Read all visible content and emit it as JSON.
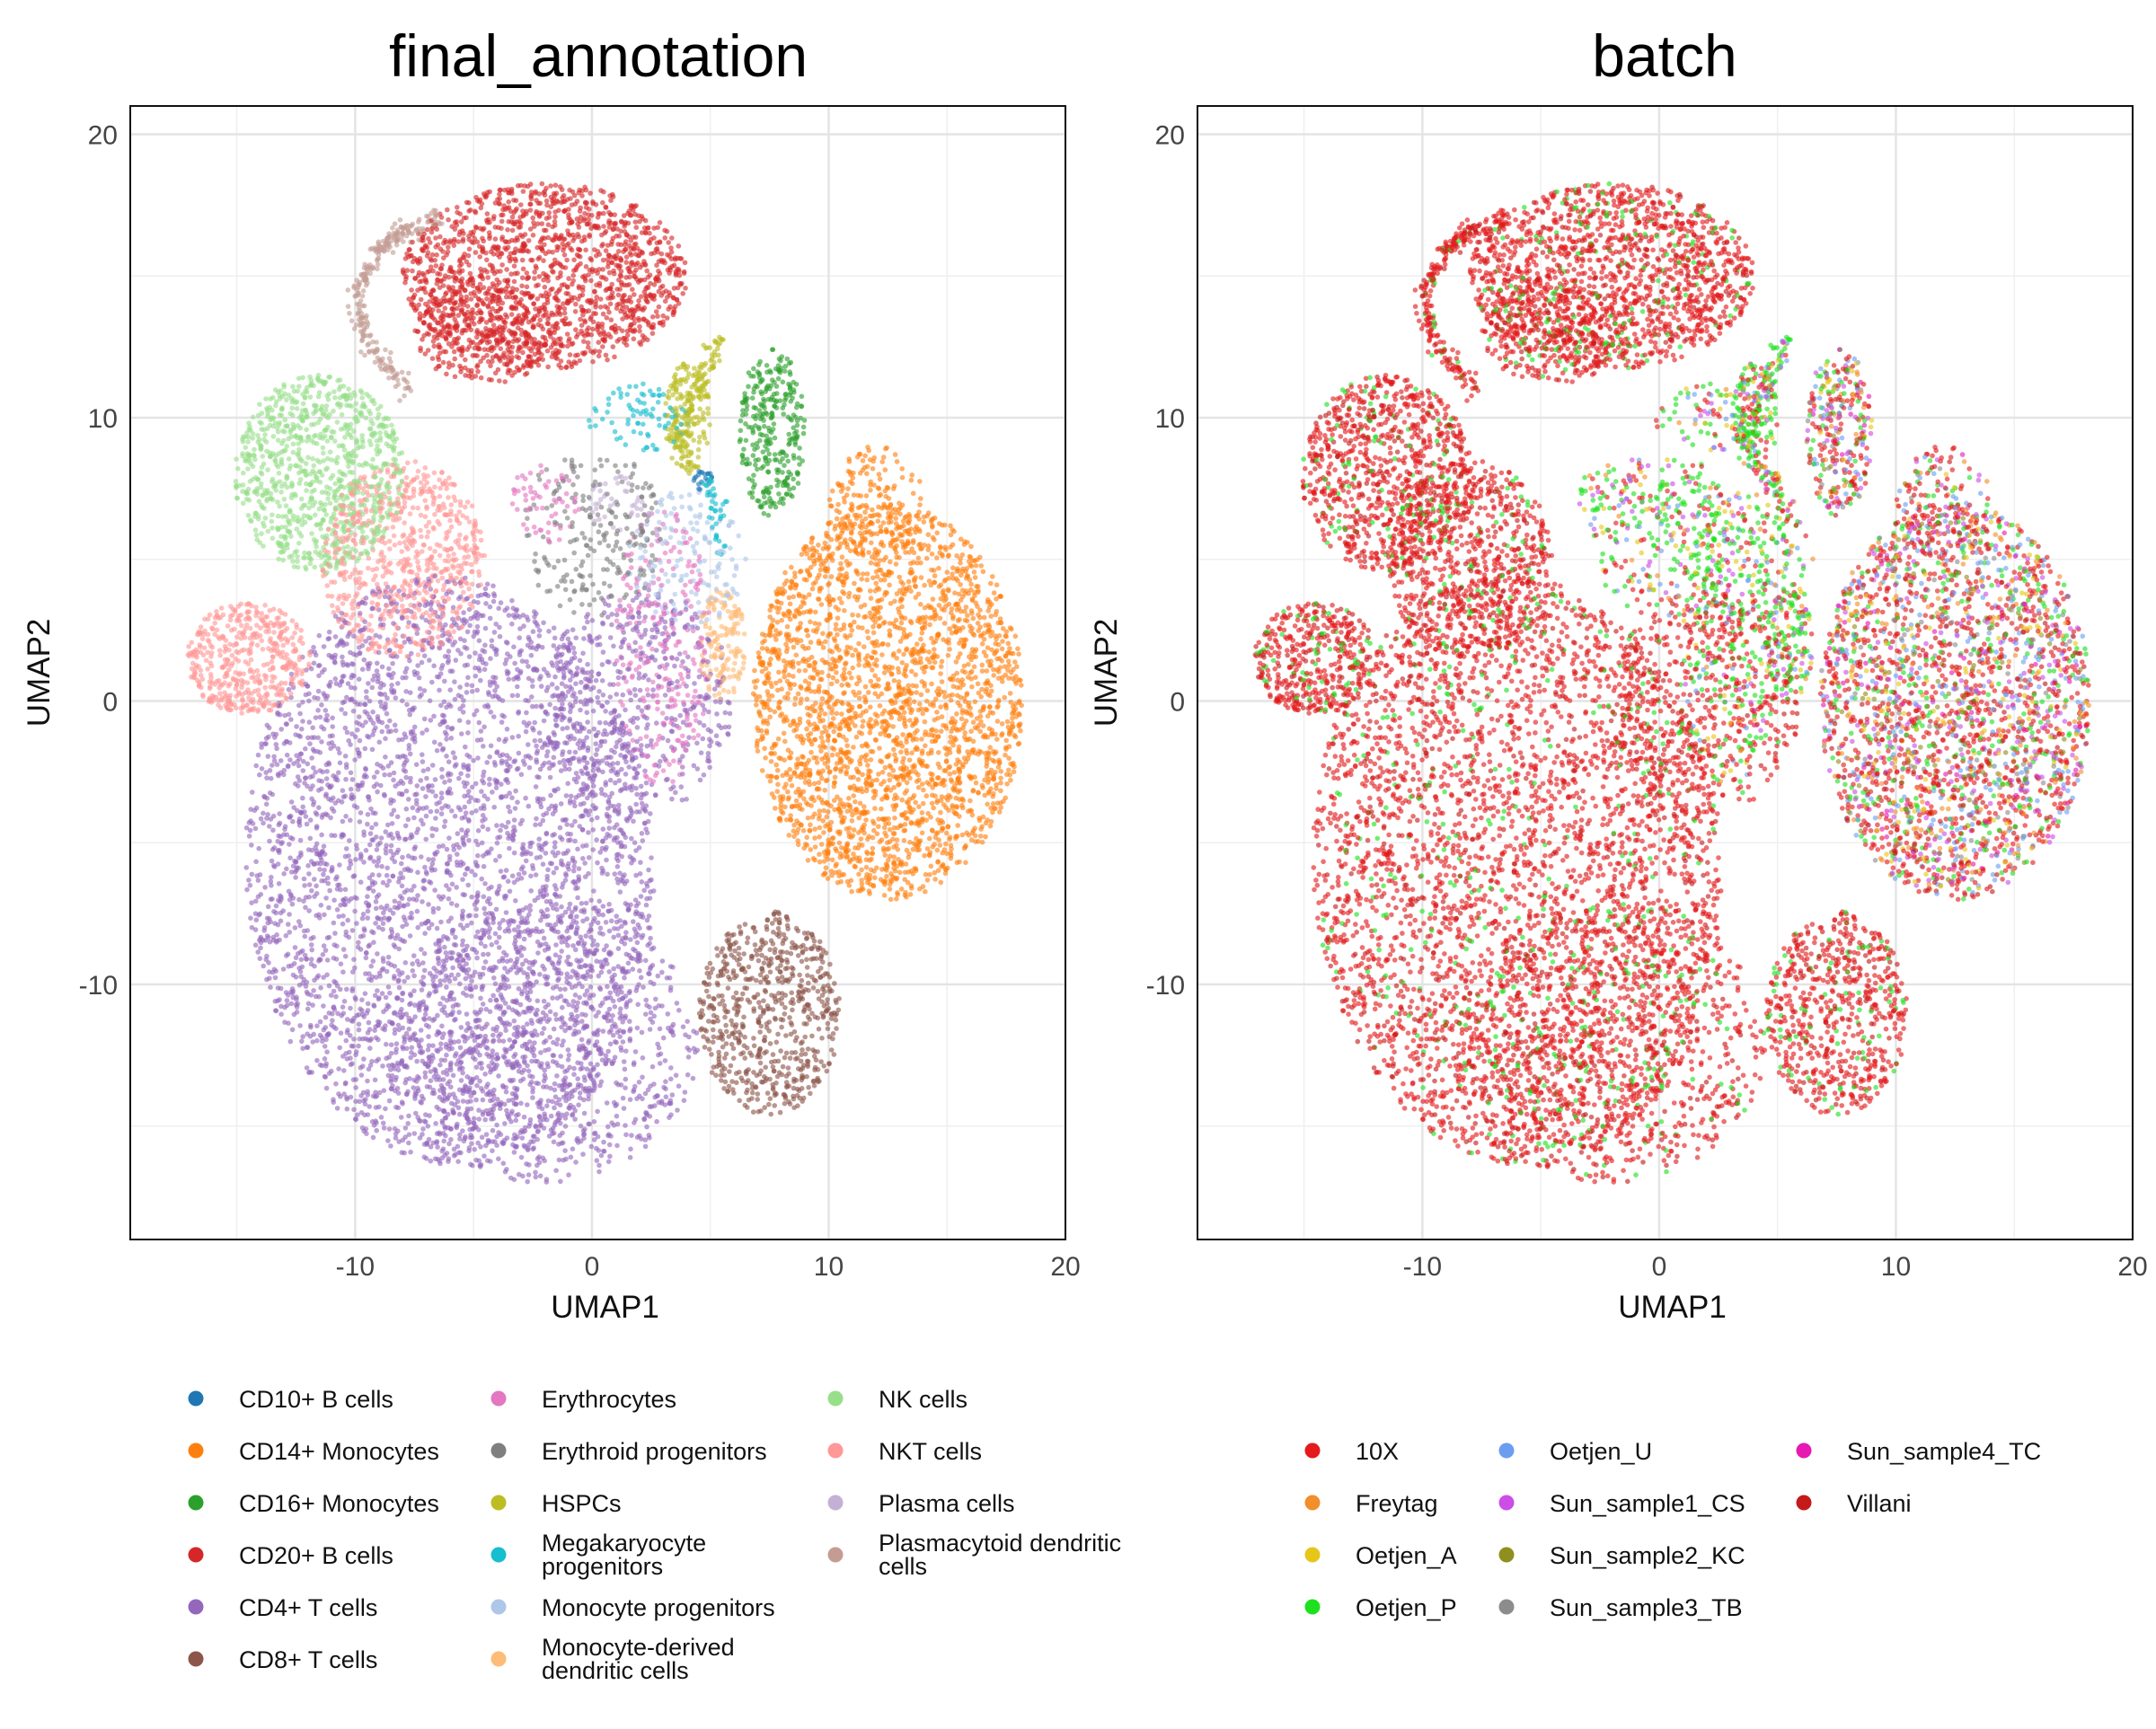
{
  "chart_data": [
    {
      "type": "scatter",
      "title": "final_annotation",
      "xlabel": "UMAP1",
      "ylabel": "UMAP2",
      "xlim": [
        -19.5,
        20
      ],
      "ylim": [
        -19,
        21
      ],
      "xticks": [
        -10,
        0,
        10,
        20
      ],
      "yticks": [
        20,
        10,
        0,
        -10
      ],
      "tick_labels_x": [
        "-10",
        "0",
        "10",
        "20"
      ],
      "tick_labels_y": [
        "20",
        "10",
        "0",
        "-10"
      ],
      "grid": true,
      "legend_position": "bottom",
      "series": [
        {
          "name": "CD10+ B cells",
          "color": "#1f77b4",
          "values": [
            [
              4.5,
              8.0
            ],
            [
              4.8,
              7.6
            ]
          ]
        },
        {
          "name": "CD14+ Monocytes",
          "color": "#ff7f0e",
          "values": [
            [
              12,
              2
            ],
            [
              15,
              0
            ],
            [
              13,
              -4
            ],
            [
              9,
              3
            ],
            [
              16,
              5
            ],
            [
              10,
              -3
            ]
          ]
        },
        {
          "name": "CD16+ Monocytes",
          "color": "#2ca02c",
          "values": [
            [
              7.5,
              11
            ],
            [
              7,
              9
            ],
            [
              8.5,
              10
            ],
            [
              6.5,
              8
            ]
          ]
        },
        {
          "name": "CD20+ B cells",
          "color": "#d62728",
          "values": [
            [
              -4,
              14
            ],
            [
              -2,
              16
            ],
            [
              0,
              17
            ],
            [
              2,
              15
            ],
            [
              -6,
              12.5
            ]
          ]
        },
        {
          "name": "CD4+ T cells",
          "color": "#9467bd",
          "values": [
            [
              -8,
              -5
            ],
            [
              -4,
              -10
            ],
            [
              0,
              -3
            ],
            [
              -10,
              0
            ],
            [
              2,
              -12
            ],
            [
              -6,
              -14
            ]
          ]
        },
        {
          "name": "CD8+ T cells",
          "color": "#8c564b",
          "values": [
            [
              7,
              -10
            ],
            [
              9,
              -11
            ],
            [
              8,
              -13
            ],
            [
              6,
              -8
            ]
          ]
        },
        {
          "name": "Erythrocytes",
          "color": "#e377c2",
          "values": [
            [
              3,
              2
            ],
            [
              4,
              0
            ],
            [
              -2,
              7
            ]
          ]
        },
        {
          "name": "Erythroid progenitors",
          "color": "#7f7f7f",
          "values": [
            [
              0,
              6
            ],
            [
              1,
              5
            ]
          ]
        },
        {
          "name": "HSPCs",
          "color": "#bcbd22",
          "values": [
            [
              3.5,
              10
            ],
            [
              4.5,
              11.5
            ]
          ]
        },
        {
          "name": "Megakaryocyte progenitors",
          "color": "#17becf",
          "values": [
            [
              2,
              10.5
            ],
            [
              5.2,
              6.2
            ]
          ]
        },
        {
          "name": "Monocyte progenitors",
          "color": "#aec7e8",
          "values": [
            [
              5.5,
              3
            ],
            [
              3,
              6
            ]
          ]
        },
        {
          "name": "Monocyte-derived dendritic cells",
          "color": "#ffbb78",
          "values": [
            [
              5.5,
              0
            ],
            [
              6,
              4
            ]
          ]
        },
        {
          "name": "NK cells",
          "color": "#98df8a",
          "values": [
            [
              -12,
              9
            ],
            [
              -14,
              7
            ],
            [
              -10,
              6
            ],
            [
              -11,
              11
            ]
          ]
        },
        {
          "name": "NKT cells",
          "color": "#ff9896",
          "values": [
            [
              -15,
              2
            ],
            [
              -9,
              6
            ],
            [
              -7,
              4
            ],
            [
              -13,
              1
            ]
          ]
        },
        {
          "name": "Plasma cells",
          "color": "#c5b0d5",
          "values": [
            [
              1,
              7
            ]
          ]
        },
        {
          "name": "Plasmacytoid dendritic cells",
          "color": "#c49c94",
          "values": [
            [
              -9.5,
              14
            ],
            [
              -8,
              11
            ],
            [
              -7,
              16.5
            ],
            [
              -6.5,
              17
            ]
          ]
        }
      ]
    },
    {
      "type": "scatter",
      "title": "batch",
      "xlabel": "UMAP1",
      "ylabel": "UMAP2",
      "xlim": [
        -19.5,
        20
      ],
      "ylim": [
        -19,
        21
      ],
      "xticks": [
        -10,
        0,
        10,
        20
      ],
      "yticks": [
        20,
        10,
        0,
        -10
      ],
      "tick_labels_x": [
        "-10",
        "0",
        "10",
        "20"
      ],
      "tick_labels_y": [
        "20",
        "10",
        "0",
        "-10"
      ],
      "grid": true,
      "legend_position": "bottom",
      "series": [
        {
          "name": "10X",
          "color": "#e41a1c",
          "values": [
            [
              -8,
              -5
            ],
            [
              12,
              2
            ],
            [
              -15,
              2
            ],
            [
              0,
              15
            ],
            [
              8,
              -11
            ]
          ]
        },
        {
          "name": "Freytag",
          "color": "#f28e2b",
          "values": [
            [
              -2,
              4
            ],
            [
              3,
              8
            ]
          ]
        },
        {
          "name": "Oetjen_A",
          "color": "#e6c619",
          "values": [
            [
              2,
              9
            ],
            [
              4,
              6
            ]
          ]
        },
        {
          "name": "Oetjen_P",
          "color": "#1fe01f",
          "values": [
            [
              -1,
              4
            ],
            [
              2,
              2
            ],
            [
              -2,
              6
            ],
            [
              3,
              -1
            ]
          ]
        },
        {
          "name": "Oetjen_U",
          "color": "#6c9ef0",
          "values": [
            [
              -3,
              -6
            ],
            [
              6,
              -8
            ]
          ]
        },
        {
          "name": "Sun_sample1_CS",
          "color": "#cc4ee6",
          "values": [
            [
              -5,
              -8
            ],
            [
              2,
              -10
            ]
          ]
        },
        {
          "name": "Sun_sample2_KC",
          "color": "#8f8f1f",
          "values": [
            [
              0,
              -5
            ]
          ]
        },
        {
          "name": "Sun_sample3_TB",
          "color": "#8c8c8c",
          "values": [
            [
              -2,
              -12
            ]
          ]
        },
        {
          "name": "Sun_sample4_TC",
          "color": "#e619b3",
          "values": [
            [
              1,
              3
            ]
          ]
        },
        {
          "name": "Villani",
          "color": "#c41a1a",
          "values": [
            [
              10,
              5
            ],
            [
              -7,
              11
            ],
            [
              11,
              9
            ],
            [
              16,
              0
            ]
          ]
        }
      ]
    }
  ],
  "legend_left": [
    "CD10+ B cells",
    "CD14+ Monocytes",
    "CD16+ Monocytes",
    "CD20+ B cells",
    "CD4+ T cells",
    "CD8+ T cells",
    "Erythrocytes",
    "Erythroid progenitors",
    "HSPCs",
    "Megakaryocyte progenitors",
    "Monocyte progenitors",
    "Monocyte-derived dendritic cells",
    "NK cells",
    "NKT cells",
    "Plasma cells",
    "Plasmacytoid dendritic cells"
  ],
  "legend_right": [
    "10X",
    "Freytag",
    "Oetjen_A",
    "Oetjen_P",
    "Oetjen_U",
    "Sun_sample1_CS",
    "Sun_sample2_KC",
    "Sun_sample3_TB",
    "Sun_sample4_TC",
    "Villani"
  ]
}
